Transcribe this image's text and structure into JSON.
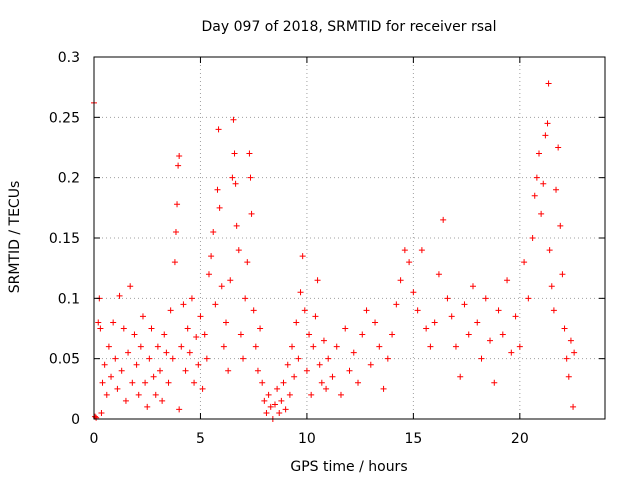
{
  "chart_data": {
    "type": "scatter",
    "title": "Day 097 of 2018, SRMTID for receiver rsal",
    "xlabel": "GPS time / hours",
    "ylabel": "SRMTID / TECUs",
    "xlim": [
      0,
      24
    ],
    "ylim": [
      0,
      0.3
    ],
    "xticks": [
      0,
      5,
      10,
      15,
      20
    ],
    "xtick_labels": [
      "0",
      "5",
      "10",
      "15",
      "20"
    ],
    "yticks": [
      0,
      0.05,
      0.1,
      0.15,
      0.2,
      0.25,
      0.3
    ],
    "ytick_labels": [
      "0",
      "0.05",
      "0.1",
      "0.15",
      "0.2",
      "0.25",
      "0.3"
    ],
    "grid": true,
    "legend": "none",
    "marker": "+",
    "series": [
      {
        "name": "SRMTID",
        "color": "#ff0000",
        "points": [
          [
            0.0,
            0.262
          ],
          [
            0.05,
            0.002
          ],
          [
            0.1,
            0.001
          ],
          [
            0.2,
            0.08
          ],
          [
            0.25,
            0.1
          ],
          [
            0.3,
            0.075
          ],
          [
            0.35,
            0.005
          ],
          [
            0.4,
            0.03
          ],
          [
            0.5,
            0.045
          ],
          [
            0.6,
            0.02
          ],
          [
            0.7,
            0.06
          ],
          [
            0.8,
            0.035
          ],
          [
            0.9,
            0.08
          ],
          [
            1.0,
            0.05
          ],
          [
            1.1,
            0.025
          ],
          [
            1.2,
            0.102
          ],
          [
            1.3,
            0.04
          ],
          [
            1.4,
            0.075
          ],
          [
            1.5,
            0.015
          ],
          [
            1.6,
            0.055
          ],
          [
            1.7,
            0.11
          ],
          [
            1.8,
            0.03
          ],
          [
            1.9,
            0.07
          ],
          [
            2.0,
            0.045
          ],
          [
            2.1,
            0.02
          ],
          [
            2.2,
            0.06
          ],
          [
            2.3,
            0.085
          ],
          [
            2.4,
            0.03
          ],
          [
            2.5,
            0.01
          ],
          [
            2.6,
            0.05
          ],
          [
            2.7,
            0.075
          ],
          [
            2.8,
            0.035
          ],
          [
            2.9,
            0.02
          ],
          [
            3.0,
            0.06
          ],
          [
            3.1,
            0.04
          ],
          [
            3.2,
            0.015
          ],
          [
            3.3,
            0.07
          ],
          [
            3.4,
            0.055
          ],
          [
            3.5,
            0.03
          ],
          [
            3.6,
            0.09
          ],
          [
            3.7,
            0.05
          ],
          [
            3.8,
            0.13
          ],
          [
            3.85,
            0.155
          ],
          [
            3.9,
            0.178
          ],
          [
            3.95,
            0.21
          ],
          [
            4.0,
            0.218
          ],
          [
            4.0,
            0.008
          ],
          [
            4.1,
            0.06
          ],
          [
            4.2,
            0.095
          ],
          [
            4.3,
            0.04
          ],
          [
            4.4,
            0.075
          ],
          [
            4.5,
            0.055
          ],
          [
            4.6,
            0.1
          ],
          [
            4.7,
            0.03
          ],
          [
            4.8,
            0.068
          ],
          [
            4.9,
            0.045
          ],
          [
            5.0,
            0.085
          ],
          [
            5.1,
            0.025
          ],
          [
            5.2,
            0.07
          ],
          [
            5.3,
            0.05
          ],
          [
            5.4,
            0.12
          ],
          [
            5.5,
            0.135
          ],
          [
            5.6,
            0.155
          ],
          [
            5.7,
            0.095
          ],
          [
            5.8,
            0.19
          ],
          [
            5.85,
            0.24
          ],
          [
            5.9,
            0.175
          ],
          [
            6.0,
            0.11
          ],
          [
            6.1,
            0.06
          ],
          [
            6.2,
            0.08
          ],
          [
            6.3,
            0.04
          ],
          [
            6.4,
            0.115
          ],
          [
            6.5,
            0.2
          ],
          [
            6.55,
            0.248
          ],
          [
            6.6,
            0.22
          ],
          [
            6.65,
            0.195
          ],
          [
            6.7,
            0.16
          ],
          [
            6.8,
            0.14
          ],
          [
            6.9,
            0.07
          ],
          [
            7.0,
            0.05
          ],
          [
            7.1,
            0.1
          ],
          [
            7.2,
            0.13
          ],
          [
            7.3,
            0.22
          ],
          [
            7.35,
            0.2
          ],
          [
            7.4,
            0.17
          ],
          [
            7.5,
            0.09
          ],
          [
            7.6,
            0.06
          ],
          [
            7.7,
            0.04
          ],
          [
            7.8,
            0.075
          ],
          [
            7.9,
            0.03
          ],
          [
            8.0,
            0.015
          ],
          [
            8.1,
            0.005
          ],
          [
            8.2,
            0.02
          ],
          [
            8.3,
            0.01
          ],
          [
            8.4,
            0.0
          ],
          [
            8.5,
            0.012
          ],
          [
            8.6,
            0.025
          ],
          [
            8.7,
            0.005
          ],
          [
            8.8,
            0.015
          ],
          [
            8.9,
            0.03
          ],
          [
            9.0,
            0.008
          ],
          [
            9.1,
            0.045
          ],
          [
            9.2,
            0.02
          ],
          [
            9.3,
            0.06
          ],
          [
            9.4,
            0.035
          ],
          [
            9.5,
            0.08
          ],
          [
            9.6,
            0.05
          ],
          [
            9.7,
            0.105
          ],
          [
            9.8,
            0.135
          ],
          [
            9.9,
            0.09
          ],
          [
            10.0,
            0.04
          ],
          [
            10.1,
            0.07
          ],
          [
            10.2,
            0.02
          ],
          [
            10.3,
            0.06
          ],
          [
            10.4,
            0.085
          ],
          [
            10.5,
            0.115
          ],
          [
            10.6,
            0.045
          ],
          [
            10.7,
            0.03
          ],
          [
            10.8,
            0.065
          ],
          [
            10.9,
            0.025
          ],
          [
            11.0,
            0.05
          ],
          [
            11.2,
            0.035
          ],
          [
            11.4,
            0.06
          ],
          [
            11.6,
            0.02
          ],
          [
            11.8,
            0.075
          ],
          [
            12.0,
            0.04
          ],
          [
            12.2,
            0.055
          ],
          [
            12.4,
            0.03
          ],
          [
            12.6,
            0.07
          ],
          [
            12.8,
            0.09
          ],
          [
            13.0,
            0.045
          ],
          [
            13.2,
            0.08
          ],
          [
            13.4,
            0.06
          ],
          [
            13.6,
            0.025
          ],
          [
            13.8,
            0.05
          ],
          [
            14.0,
            0.07
          ],
          [
            14.2,
            0.095
          ],
          [
            14.4,
            0.115
          ],
          [
            14.6,
            0.14
          ],
          [
            14.8,
            0.13
          ],
          [
            15.0,
            0.105
          ],
          [
            15.2,
            0.09
          ],
          [
            15.4,
            0.14
          ],
          [
            15.6,
            0.075
          ],
          [
            15.8,
            0.06
          ],
          [
            16.0,
            0.08
          ],
          [
            16.2,
            0.12
          ],
          [
            16.4,
            0.165
          ],
          [
            16.6,
            0.1
          ],
          [
            16.8,
            0.085
          ],
          [
            17.0,
            0.06
          ],
          [
            17.2,
            0.035
          ],
          [
            17.4,
            0.095
          ],
          [
            17.6,
            0.07
          ],
          [
            17.8,
            0.11
          ],
          [
            18.0,
            0.08
          ],
          [
            18.2,
            0.05
          ],
          [
            18.4,
            0.1
          ],
          [
            18.6,
            0.065
          ],
          [
            18.8,
            0.03
          ],
          [
            19.0,
            0.09
          ],
          [
            19.2,
            0.07
          ],
          [
            19.4,
            0.115
          ],
          [
            19.6,
            0.055
          ],
          [
            19.8,
            0.085
          ],
          [
            20.0,
            0.06
          ],
          [
            20.2,
            0.13
          ],
          [
            20.4,
            0.1
          ],
          [
            20.6,
            0.15
          ],
          [
            20.7,
            0.185
          ],
          [
            20.8,
            0.2
          ],
          [
            20.9,
            0.22
          ],
          [
            21.0,
            0.17
          ],
          [
            21.1,
            0.195
          ],
          [
            21.2,
            0.235
          ],
          [
            21.3,
            0.245
          ],
          [
            21.35,
            0.278
          ],
          [
            21.4,
            0.14
          ],
          [
            21.5,
            0.11
          ],
          [
            21.6,
            0.09
          ],
          [
            21.7,
            0.19
          ],
          [
            21.8,
            0.225
          ],
          [
            21.9,
            0.16
          ],
          [
            22.0,
            0.12
          ],
          [
            22.1,
            0.075
          ],
          [
            22.2,
            0.05
          ],
          [
            22.3,
            0.035
          ],
          [
            22.4,
            0.065
          ],
          [
            22.5,
            0.01
          ],
          [
            22.55,
            0.055
          ]
        ]
      }
    ]
  }
}
